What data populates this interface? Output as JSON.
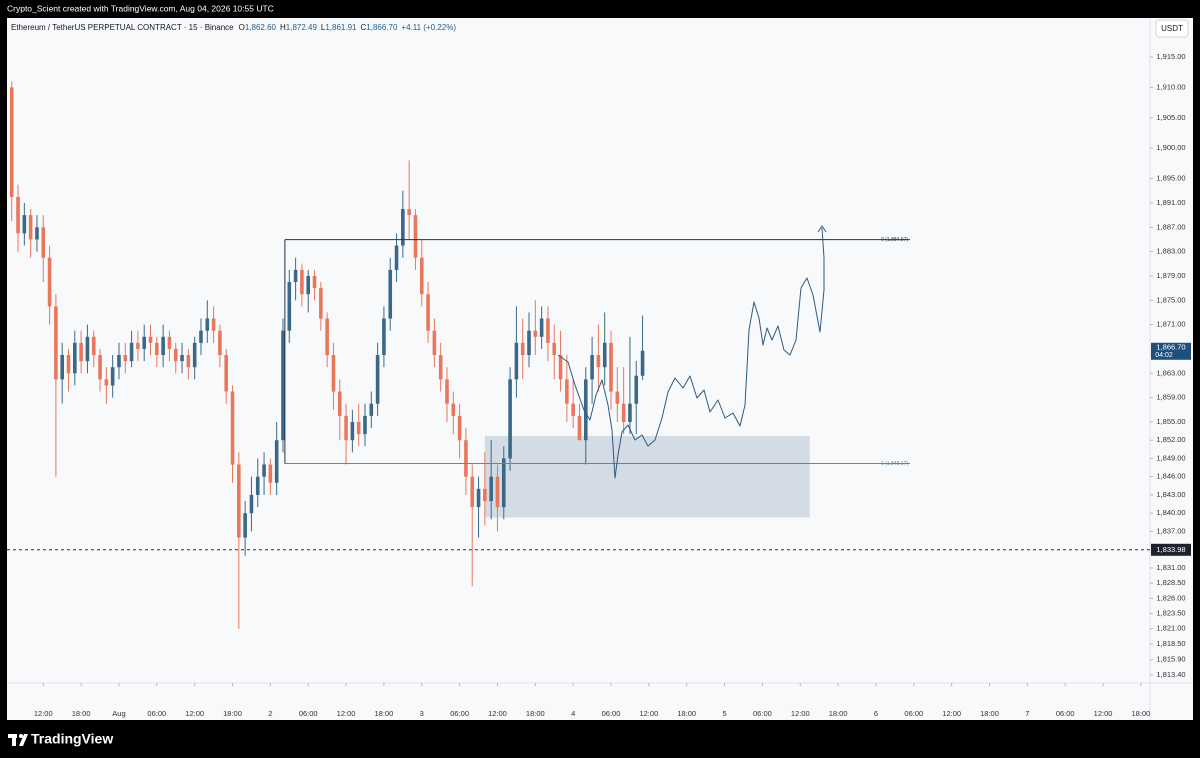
{
  "header": {
    "credit": "Crypto_Scient created with TradingView.com, Aug 04, 2026 10:55 UTC",
    "brand": "TradingView"
  },
  "chart_data": {
    "type": "candlestick",
    "symbol": "Ethereum / TetherUS PERPETUAL CONTRACT · 15 · Binance",
    "ohlc": [
      {
        "key": "O",
        "text": "1,862.60"
      },
      {
        "key": "H",
        "text": "1,872.49"
      },
      {
        "key": "L",
        "text": "1,861.91"
      },
      {
        "key": "C",
        "text": "1,866.70"
      }
    ],
    "change": "+4.11 (+0.22%)",
    "currency": "USDT",
    "up_color": "#3b6889",
    "down_color": "#e9775c",
    "grid": false,
    "x": [
      -17,
      -16,
      -15,
      -14,
      -13,
      -12,
      -11,
      -10,
      -9,
      -8,
      -7,
      -6,
      -5,
      -4,
      -3,
      -2,
      -1,
      0,
      1,
      2,
      3,
      4,
      5,
      6,
      7,
      8,
      9,
      10,
      11,
      12,
      13,
      14,
      15,
      16,
      17,
      18,
      19,
      20,
      21,
      22,
      23,
      24,
      25,
      26,
      27,
      28,
      29,
      30,
      31,
      32,
      33,
      34,
      35,
      36,
      37,
      38,
      39,
      40,
      41,
      42,
      43,
      44,
      45,
      46,
      47,
      48,
      49,
      50,
      51,
      52,
      53,
      54,
      55,
      56,
      57,
      58,
      59,
      60,
      61,
      62,
      63,
      64,
      65,
      66,
      67,
      68,
      69,
      70,
      71,
      72,
      73,
      74,
      75,
      76,
      77,
      78,
      79,
      80,
      81,
      82,
      83
    ],
    "open": [
      1910,
      1892,
      1886,
      1889,
      1885,
      1887,
      1882,
      1874,
      1862,
      1866,
      1863,
      1868,
      1865,
      1869,
      1866,
      1862,
      1861,
      1864,
      1866,
      1865,
      1868,
      1867,
      1869,
      1868,
      1866,
      1869,
      1867,
      1865,
      1866,
      1864,
      1868,
      1870,
      1872,
      1870,
      1866,
      1860,
      1848,
      1836,
      1840,
      1843,
      1846,
      1848,
      1845,
      1852,
      1870,
      1878,
      1880,
      1876,
      1879,
      1877,
      1872,
      1866,
      1860,
      1856,
      1852,
      1855,
      1853,
      1856,
      1858,
      1866,
      1872,
      1880,
      1884,
      1890,
      1889,
      1882,
      1876,
      1870,
      1866,
      1862,
      1858,
      1856,
      1852,
      1846,
      1841,
      1844,
      1842,
      1846,
      1841,
      1849,
      1862,
      1868,
      1866,
      1870,
      1869,
      1872,
      1868,
      1866,
      1862,
      1858,
      1856,
      1852,
      1862,
      1866,
      1864,
      1868,
      1860,
      1858,
      1855,
      1858,
      1862.6
    ],
    "high": [
      1911,
      1894,
      1891,
      1890,
      1889,
      1889,
      1884,
      1876,
      1868,
      1867,
      1870,
      1870,
      1871,
      1870,
      1867,
      1864,
      1866,
      1868,
      1868,
      1870,
      1870,
      1871,
      1871,
      1869,
      1871,
      1870,
      1868,
      1868,
      1867,
      1869,
      1872,
      1875,
      1874,
      1871,
      1867,
      1861,
      1850,
      1842,
      1846,
      1849,
      1850,
      1849,
      1855,
      1872,
      1880,
      1882,
      1881,
      1880,
      1880,
      1878,
      1873,
      1868,
      1862,
      1858,
      1857,
      1858,
      1858,
      1860,
      1868,
      1874,
      1882,
      1886,
      1893,
      1898,
      1890,
      1885,
      1878,
      1872,
      1868,
      1864,
      1860,
      1858,
      1854,
      1848,
      1846,
      1850,
      1852,
      1848,
      1851,
      1864,
      1874,
      1872,
      1873,
      1875,
      1874,
      1874,
      1871,
      1870,
      1866,
      1862,
      1858,
      1864,
      1869,
      1871,
      1873,
      1870,
      1864,
      1864,
      1869,
      1865,
      1872.49
    ],
    "low": [
      1888,
      1883,
      1884,
      1882,
      1883,
      1878,
      1871,
      1846,
      1858,
      1860,
      1861,
      1863,
      1863,
      1864,
      1860,
      1858,
      1859,
      1862,
      1863,
      1864,
      1865,
      1865,
      1866,
      1864,
      1864,
      1865,
      1863,
      1863,
      1862,
      1862,
      1866,
      1868,
      1868,
      1864,
      1858,
      1845,
      1821,
      1833,
      1837,
      1841,
      1843,
      1843,
      1843,
      1850,
      1868,
      1875,
      1874,
      1873,
      1875,
      1870,
      1864,
      1857,
      1852,
      1848,
      1850,
      1851,
      1851,
      1854,
      1856,
      1864,
      1870,
      1878,
      1882,
      1885,
      1880,
      1874,
      1868,
      1864,
      1860,
      1855,
      1853,
      1849,
      1843,
      1828,
      1836,
      1838,
      1839,
      1837,
      1839,
      1847,
      1859,
      1862,
      1864,
      1866,
      1867,
      1865,
      1862,
      1860,
      1855,
      1854,
      1852,
      1848,
      1858,
      1860,
      1861,
      1857,
      1855,
      1853,
      1853,
      1853,
      1861.91
    ],
    "close": [
      1892,
      1886,
      1889,
      1885,
      1887,
      1882,
      1874,
      1862,
      1866,
      1863,
      1868,
      1865,
      1869,
      1866,
      1862,
      1861,
      1864,
      1866,
      1865,
      1868,
      1867,
      1869,
      1868,
      1866,
      1869,
      1867,
      1865,
      1866,
      1864,
      1868,
      1870,
      1872,
      1870,
      1866,
      1860,
      1848,
      1836,
      1840,
      1843,
      1846,
      1848,
      1845,
      1852,
      1870,
      1878,
      1880,
      1876,
      1879,
      1877,
      1872,
      1866,
      1860,
      1856,
      1852,
      1855,
      1853,
      1856,
      1858,
      1866,
      1872,
      1880,
      1884,
      1890,
      1889,
      1882,
      1876,
      1870,
      1866,
      1862,
      1858,
      1856,
      1852,
      1846,
      1841,
      1844,
      1842,
      1846,
      1841,
      1849,
      1862,
      1868,
      1866,
      1870,
      1869,
      1872,
      1868,
      1866,
      1862,
      1858,
      1856,
      1852,
      1862,
      1866,
      1864,
      1868,
      1860,
      1858,
      1855,
      1858,
      1862.6,
      1866.7
    ],
    "xlim": [
      -17.75,
      163.44
    ],
    "xticks": [
      {
        "value": -12,
        "label": "12:00"
      },
      {
        "value": -6,
        "label": "18:00"
      },
      {
        "value": 0,
        "label": "Aug"
      },
      {
        "value": 6,
        "label": "06:00"
      },
      {
        "value": 12,
        "label": "12:00"
      },
      {
        "value": 18,
        "label": "18:00"
      },
      {
        "value": 24,
        "label": "2"
      },
      {
        "value": 30,
        "label": "06:00"
      },
      {
        "value": 36,
        "label": "12:00"
      },
      {
        "value": 42,
        "label": "18:00"
      },
      {
        "value": 48,
        "label": "3"
      },
      {
        "value": 54,
        "label": "06:00"
      },
      {
        "value": 60,
        "label": "12:00"
      },
      {
        "value": 66,
        "label": "18:00"
      },
      {
        "value": 72,
        "label": "4"
      },
      {
        "value": 78,
        "label": "06:00"
      },
      {
        "value": 84,
        "label": "12:00"
      },
      {
        "value": 90,
        "label": "18:00"
      },
      {
        "value": 96,
        "label": "5"
      },
      {
        "value": 102,
        "label": "06:00"
      },
      {
        "value": 108,
        "label": "12:00"
      },
      {
        "value": 114,
        "label": "18:00"
      },
      {
        "value": 120,
        "label": "6"
      },
      {
        "value": 126,
        "label": "06:00"
      },
      {
        "value": 132,
        "label": "12:00"
      },
      {
        "value": 138,
        "label": "18:00"
      },
      {
        "value": 144,
        "label": "7"
      },
      {
        "value": 150,
        "label": "06:00"
      },
      {
        "value": 156,
        "label": "12:00"
      },
      {
        "value": 162,
        "label": "18:00"
      }
    ],
    "ylim": [
      1812.08,
      1921.41
    ],
    "yticks": [
      {
        "value": 1915,
        "label": "1,915.00"
      },
      {
        "value": 1910,
        "label": "1,910.00"
      },
      {
        "value": 1905,
        "label": "1,905.00"
      },
      {
        "value": 1900,
        "label": "1,900.00"
      },
      {
        "value": 1895,
        "label": "1,895.00"
      },
      {
        "value": 1891,
        "label": "1,891.00"
      },
      {
        "value": 1887,
        "label": "1,887.00"
      },
      {
        "value": 1883,
        "label": "1,883.00"
      },
      {
        "value": 1879,
        "label": "1,879.00"
      },
      {
        "value": 1875,
        "label": "1,875.00"
      },
      {
        "value": 1871,
        "label": "1,871.00"
      },
      {
        "value": 1863,
        "label": "1,863.00"
      },
      {
        "value": 1859,
        "label": "1,859.00"
      },
      {
        "value": 1855,
        "label": "1,855.00"
      },
      {
        "value": 1852,
        "label": "1,852.00"
      },
      {
        "value": 1849,
        "label": "1,849.00"
      },
      {
        "value": 1846,
        "label": "1,846.00"
      },
      {
        "value": 1843,
        "label": "1,843.00"
      },
      {
        "value": 1840,
        "label": "1,840.00"
      },
      {
        "value": 1837,
        "label": "1,837.00"
      },
      {
        "value": 1831,
        "label": "1,831.00"
      },
      {
        "value": 1828.5,
        "label": "1,828.50"
      },
      {
        "value": 1826,
        "label": "1,826.00"
      },
      {
        "value": 1823.5,
        "label": "1,823.50"
      },
      {
        "value": 1821,
        "label": "1,821.00"
      },
      {
        "value": 1818.5,
        "label": "1,818.50"
      },
      {
        "value": 1815.9,
        "label": "1,815.90"
      },
      {
        "value": 1813.4,
        "label": "1,813.40"
      }
    ],
    "levels": [
      {
        "value": 1884.97,
        "label": "0 (1,884.97)",
        "x": [
          26.3,
          125.4
        ],
        "color": "#1f3447"
      },
      {
        "value": 1848.17,
        "label": "1 (1,848.17)",
        "x": [
          26.3,
          125.4
        ],
        "color": "#5a87ad"
      }
    ],
    "zone": {
      "x": [
        58,
        109.5
      ],
      "y": [
        1839.3,
        1852.7
      ],
      "color": "#c9d3df"
    },
    "price_line": {
      "value": 1833.98,
      "label": "1,833.98"
    },
    "last_price": {
      "value": 1866.7,
      "label": "1,866.70",
      "countdown": "04:02",
      "color": "#1f4f7d"
    }
  }
}
